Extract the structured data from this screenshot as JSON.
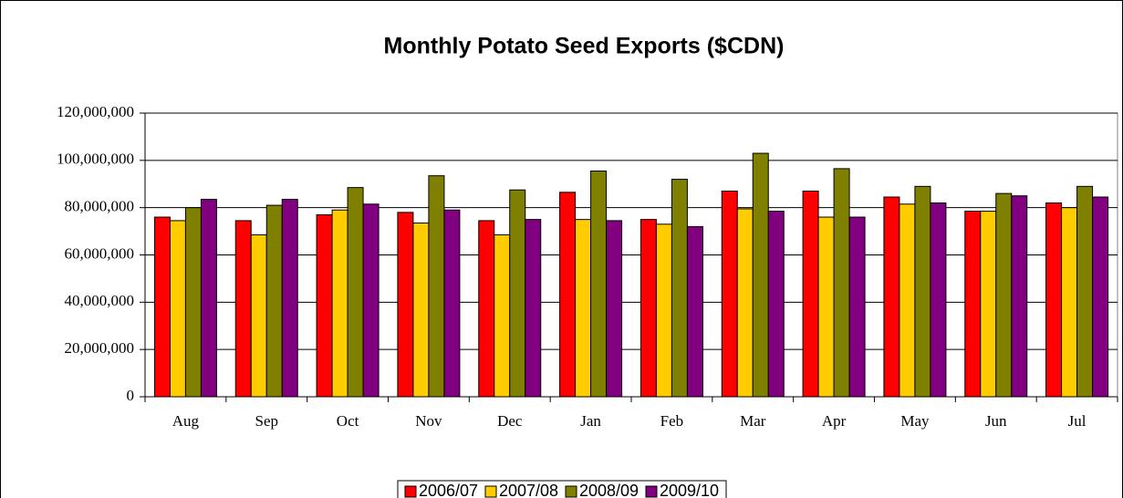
{
  "chart_data": {
    "type": "bar",
    "title": "Monthly Potato Seed Exports ($CDN)",
    "categories": [
      "Aug",
      "Sep",
      "Oct",
      "Nov",
      "Dec",
      "Jan",
      "Feb",
      "Mar",
      "Apr",
      "May",
      "Jun",
      "Jul"
    ],
    "series": [
      {
        "name": "2006/07",
        "color": "#ff0000",
        "values": [
          76000000,
          74500000,
          77000000,
          78000000,
          74500000,
          86500000,
          75000000,
          87000000,
          87000000,
          84500000,
          78500000,
          82000000
        ]
      },
      {
        "name": "2007/08",
        "color": "#ffcc00",
        "values": [
          74500000,
          68500000,
          79000000,
          73500000,
          68500000,
          75000000,
          73000000,
          79500000,
          76000000,
          81500000,
          78500000,
          80000000
        ]
      },
      {
        "name": "2008/09",
        "color": "#808000",
        "values": [
          80000000,
          81000000,
          88500000,
          93500000,
          87500000,
          95500000,
          92000000,
          103000000,
          96500000,
          89000000,
          86000000,
          89000000
        ]
      },
      {
        "name": "2009/10",
        "color": "#800080",
        "values": [
          83500000,
          83500000,
          81500000,
          79000000,
          75000000,
          74500000,
          72000000,
          78500000,
          76000000,
          82000000,
          85000000,
          84500000
        ]
      }
    ],
    "ylim": [
      0,
      120000000
    ],
    "yticks": [
      0,
      {
        "value": 20000000,
        "label": "20,000,000"
      },
      {
        "value": 40000000,
        "label": "40,000,000"
      },
      {
        "value": 60000000,
        "label": "60,000,000"
      },
      {
        "value": 80000000,
        "label": "80,000,000"
      },
      {
        "value": 100000000,
        "label": "100,000,000"
      },
      {
        "value": 120000000,
        "label": "120,000,000"
      }
    ],
    "grid": true,
    "legend": "bottom"
  }
}
